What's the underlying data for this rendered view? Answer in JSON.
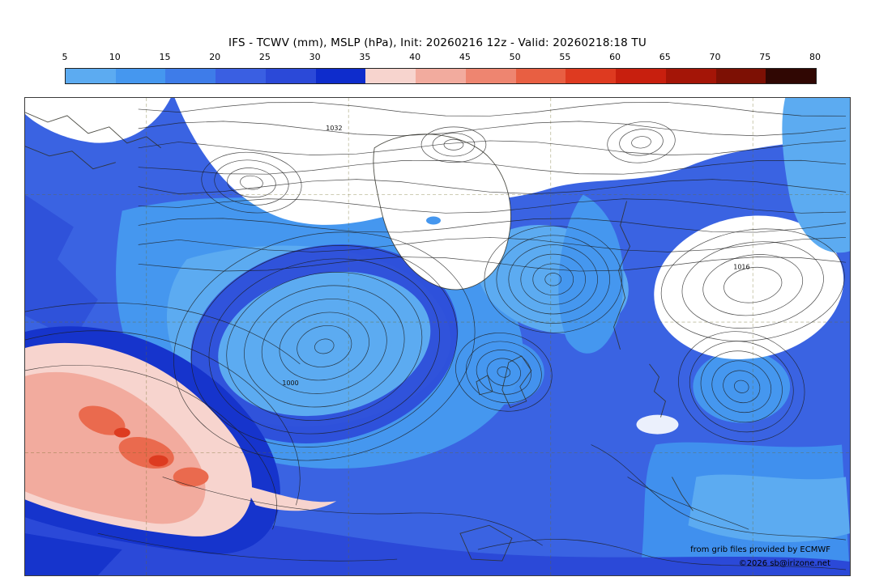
{
  "title": "IFS - TCWV (mm), MSLP (hPa), Init: 20260216 12z - Valid: 20260218:18 TU",
  "colorbar": {
    "unit": "mm",
    "ticks": [
      "5",
      "10",
      "15",
      "20",
      "25",
      "30",
      "35",
      "40",
      "45",
      "50",
      "55",
      "60",
      "65",
      "70",
      "75",
      "80"
    ],
    "segments": [
      {
        "from": 5,
        "to": 10,
        "color": "#5cabf1"
      },
      {
        "from": 10,
        "to": 15,
        "color": "#4597ef"
      },
      {
        "from": 15,
        "to": 20,
        "color": "#3e7ce9"
      },
      {
        "from": 20,
        "to": 25,
        "color": "#3a5fe2"
      },
      {
        "from": 25,
        "to": 30,
        "color": "#2b49d8"
      },
      {
        "from": 30,
        "to": 35,
        "color": "#0e2ccc"
      },
      {
        "from": 35,
        "to": 40,
        "color": "#f7d4ce"
      },
      {
        "from": 40,
        "to": 45,
        "color": "#f2ab9e"
      },
      {
        "from": 45,
        "to": 50,
        "color": "#ee8570"
      },
      {
        "from": 50,
        "to": 55,
        "color": "#e85f42"
      },
      {
        "from": 55,
        "to": 60,
        "color": "#de3a20"
      },
      {
        "from": 60,
        "to": 65,
        "color": "#c81f0e"
      },
      {
        "from": 65,
        "to": 70,
        "color": "#a41507"
      },
      {
        "from": 70,
        "to": 75,
        "color": "#7d1004"
      },
      {
        "from": 75,
        "to": 80,
        "color": "#300703"
      }
    ]
  },
  "map": {
    "isobar_labels": [
      "1032",
      "1016",
      "1000"
    ]
  },
  "credits": {
    "provider": "from grib files provided by ECMWF",
    "copyright": "©2026 sb@irizone.net"
  }
}
